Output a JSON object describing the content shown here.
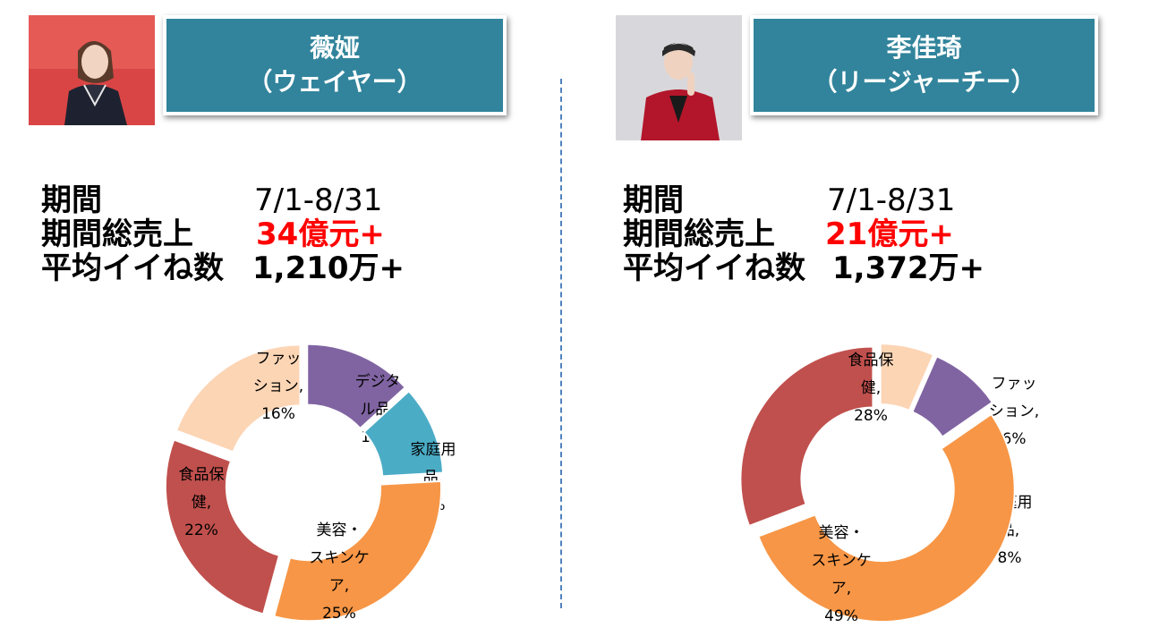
{
  "colors": {
    "name_box": "#31849B",
    "highlight_red": "#FF0000",
    "divider": "#4F81BD"
  },
  "left": {
    "photo": "woman-portrait-photo",
    "name_line1": "薇娅",
    "name_line2": "（ウェイヤー）",
    "stats": {
      "period_label": "期間",
      "period_value": "7/1-8/31",
      "sales_label": "期間総売上",
      "sales_value": "34億元+",
      "likes_label": "平均イイね数",
      "likes_value": "1,210万+"
    }
  },
  "right": {
    "photo": "man-portrait-photo",
    "name_line1": "李佳琦",
    "name_line2": "（リージャーチー）",
    "stats": {
      "period_label": "期間",
      "period_value": "7/1-8/31",
      "sales_label": "期間総売上",
      "sales_value": "21億元+",
      "likes_label": "平均イイね数",
      "likes_value": "1,372万+"
    }
  },
  "chart_data": [
    {
      "type": "pie",
      "slices": [
        {
          "lines": [
            "デジタ",
            "ル品,",
            "11%"
          ],
          "value": 11,
          "color": "#8064A2"
        },
        {
          "lines": [
            "家庭用",
            "品,",
            "9%"
          ],
          "value": 9,
          "color": "#4BACC6"
        },
        {
          "lines": [
            "美容・",
            "スキンケ",
            "ア,",
            "25%"
          ],
          "value": 25,
          "color": "#F79646"
        },
        {
          "lines": [
            "食品保",
            "健,",
            "22%"
          ],
          "value": 22,
          "color": "#C0504D"
        },
        {
          "lines": [
            "ファッ",
            "ション,",
            "16%"
          ],
          "value": 16,
          "color": "#FCD5B5"
        }
      ]
    },
    {
      "type": "pie",
      "slices": [
        {
          "lines": [
            "ファッ",
            "ション,",
            "6%"
          ],
          "value": 6,
          "color": "#FCD5B5"
        },
        {
          "lines": [
            "家庭用",
            "品,",
            "8%"
          ],
          "value": 8,
          "color": "#8064A2"
        },
        {
          "lines": [
            "美容・",
            "スキンケ",
            "ア,",
            "49%"
          ],
          "value": 49,
          "color": "#F79646"
        },
        {
          "lines": [
            "食品保",
            "健,",
            "28%"
          ],
          "value": 28,
          "color": "#C0504D"
        }
      ]
    }
  ]
}
